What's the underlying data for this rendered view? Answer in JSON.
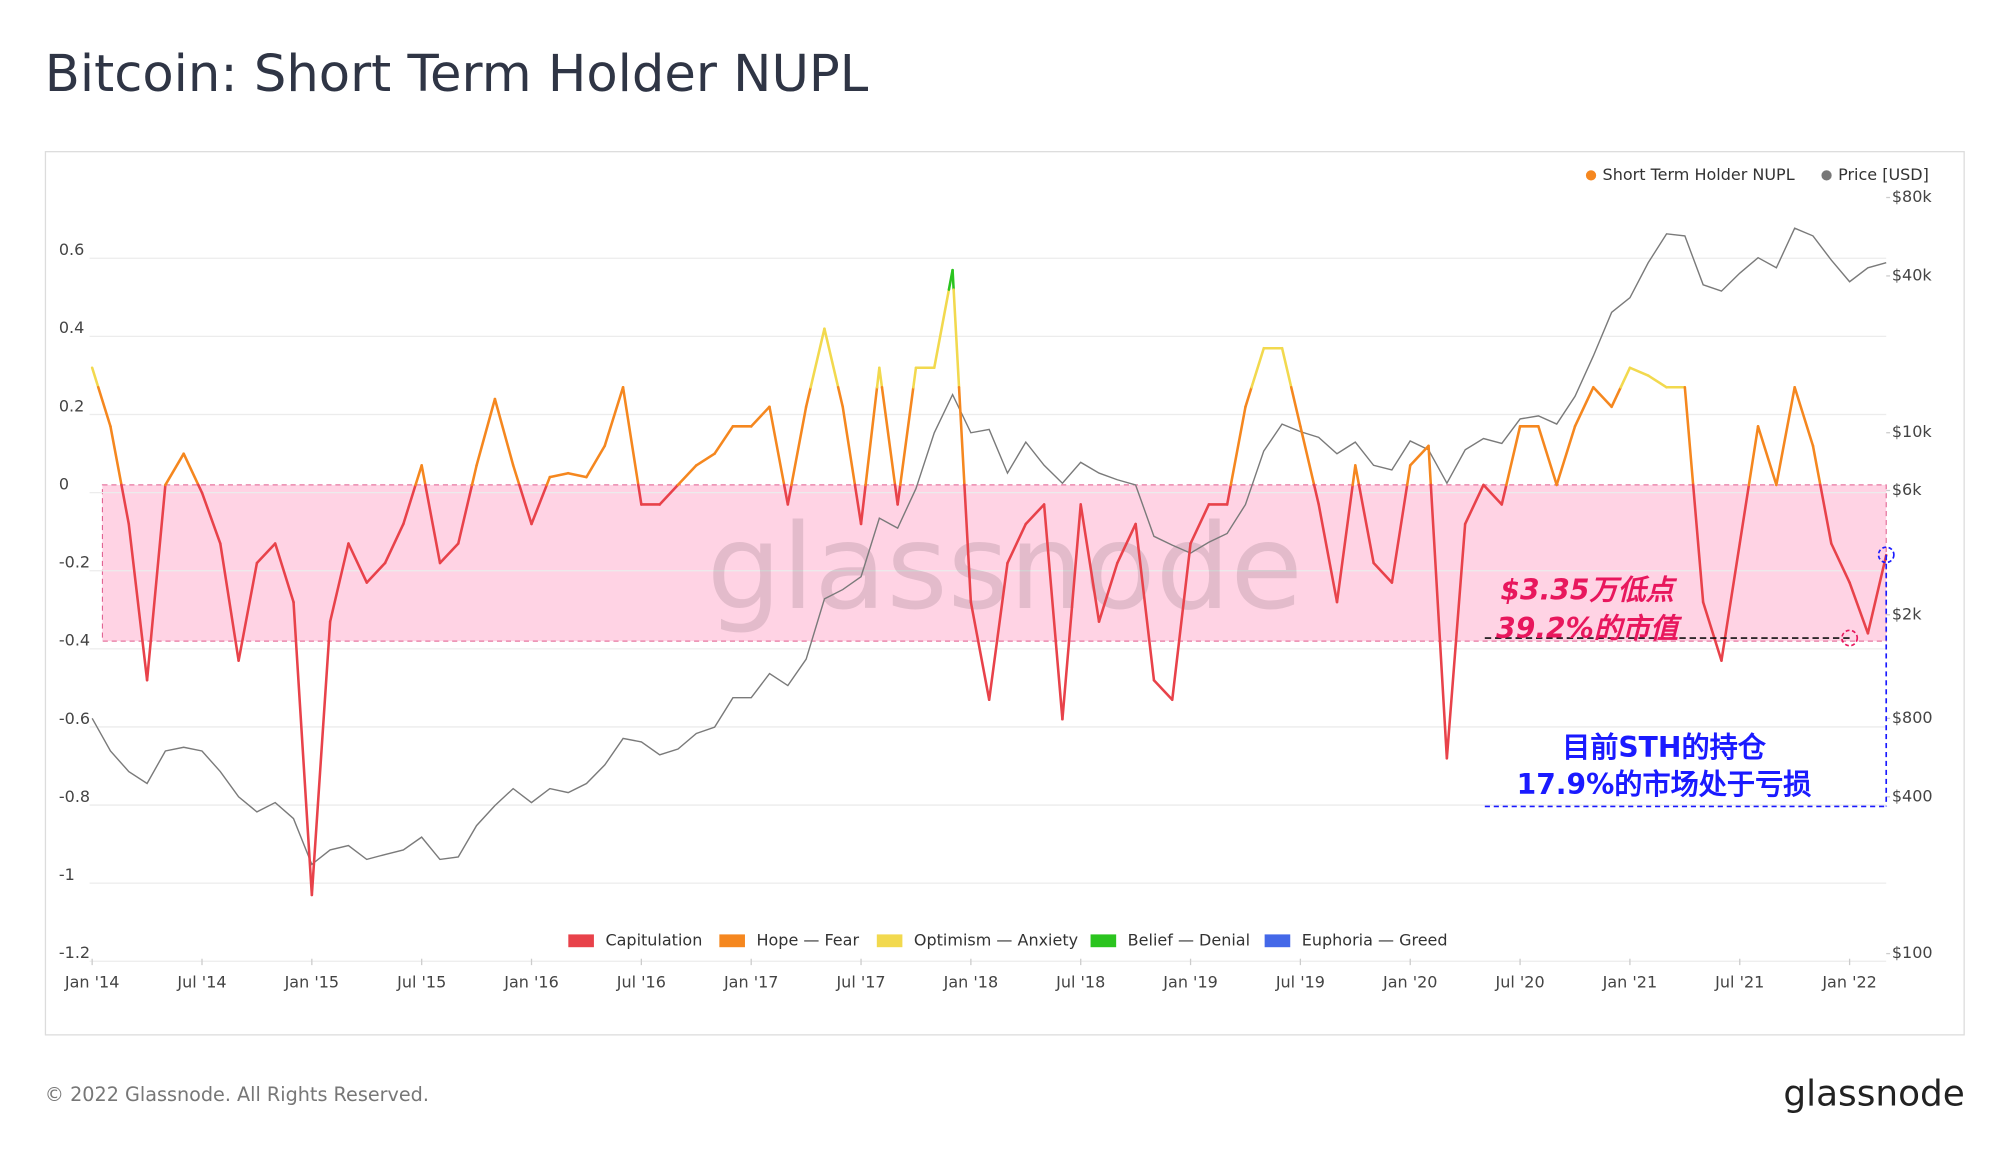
{
  "chart_data": {
    "type": "line",
    "title": "Bitcoin: Short Term Holder NUPL",
    "x": [
      "2014-01",
      "2014-02",
      "2014-03",
      "2014-04",
      "2014-05",
      "2014-06",
      "2014-07",
      "2014-08",
      "2014-09",
      "2014-10",
      "2014-11",
      "2014-12",
      "2015-01",
      "2015-02",
      "2015-03",
      "2015-04",
      "2015-05",
      "2015-06",
      "2015-07",
      "2015-08",
      "2015-09",
      "2015-10",
      "2015-11",
      "2015-12",
      "2016-01",
      "2016-02",
      "2016-03",
      "2016-04",
      "2016-05",
      "2016-06",
      "2016-07",
      "2016-08",
      "2016-09",
      "2016-10",
      "2016-11",
      "2016-12",
      "2017-01",
      "2017-02",
      "2017-03",
      "2017-04",
      "2017-05",
      "2017-06",
      "2017-07",
      "2017-08",
      "2017-09",
      "2017-10",
      "2017-11",
      "2017-12",
      "2018-01",
      "2018-02",
      "2018-03",
      "2018-04",
      "2018-05",
      "2018-06",
      "2018-07",
      "2018-08",
      "2018-09",
      "2018-10",
      "2018-11",
      "2018-12",
      "2019-01",
      "2019-02",
      "2019-03",
      "2019-04",
      "2019-05",
      "2019-06",
      "2019-07",
      "2019-08",
      "2019-09",
      "2019-10",
      "2019-11",
      "2019-12",
      "2020-01",
      "2020-02",
      "2020-03",
      "2020-04",
      "2020-05",
      "2020-06",
      "2020-07",
      "2020-08",
      "2020-09",
      "2020-10",
      "2020-11",
      "2020-12",
      "2021-01",
      "2021-02",
      "2021-03",
      "2021-04",
      "2021-05",
      "2021-06",
      "2021-07",
      "2021-08",
      "2021-09",
      "2021-10",
      "2021-11",
      "2021-12",
      "2022-01",
      "2022-02",
      "2022-03"
    ],
    "series": [
      {
        "name": "Short Term Holder NUPL",
        "color": "#f5871f",
        "values": [
          0.3,
          0.15,
          -0.1,
          -0.5,
          0.0,
          0.08,
          -0.02,
          -0.15,
          -0.45,
          -0.2,
          -0.15,
          -0.3,
          -1.05,
          -0.35,
          -0.15,
          -0.25,
          -0.2,
          -0.1,
          0.05,
          -0.2,
          -0.15,
          0.05,
          0.22,
          0.05,
          -0.1,
          0.02,
          0.03,
          0.02,
          0.1,
          0.25,
          -0.05,
          -0.05,
          0.0,
          0.05,
          0.08,
          0.15,
          0.15,
          0.2,
          -0.05,
          0.2,
          0.4,
          0.2,
          -0.1,
          0.3,
          -0.05,
          0.3,
          0.3,
          0.55,
          -0.3,
          -0.55,
          -0.2,
          -0.1,
          -0.05,
          -0.6,
          -0.05,
          -0.35,
          -0.2,
          -0.1,
          -0.5,
          -0.55,
          -0.15,
          -0.05,
          -0.05,
          0.2,
          0.35,
          0.35,
          0.15,
          -0.05,
          -0.3,
          0.05,
          -0.2,
          -0.25,
          0.05,
          0.1,
          -0.7,
          -0.1,
          0.0,
          -0.05,
          0.15,
          0.15,
          0.0,
          0.15,
          0.25,
          0.2,
          0.3,
          0.28,
          0.25,
          0.25,
          -0.3,
          -0.45,
          -0.15,
          0.15,
          0.0,
          0.25,
          0.1,
          -0.15,
          -0.25,
          -0.38,
          -0.18
        ]
      },
      {
        "name": "Price [USD]",
        "color": "#7a7a7a",
        "axis": "y2",
        "values": [
          800,
          600,
          500,
          450,
          600,
          620,
          600,
          500,
          400,
          350,
          380,
          330,
          220,
          250,
          260,
          230,
          240,
          250,
          280,
          230,
          235,
          310,
          370,
          430,
          380,
          430,
          415,
          450,
          530,
          670,
          650,
          580,
          610,
          700,
          740,
          960,
          960,
          1190,
          1070,
          1350,
          2300,
          2500,
          2800,
          4700,
          4300,
          6100,
          10000,
          14000,
          10000,
          10300,
          7000,
          9200,
          7500,
          6400,
          7700,
          7000,
          6600,
          6300,
          4000,
          3700,
          3450,
          3800,
          4100,
          5300,
          8500,
          10800,
          10100,
          9600,
          8300,
          9200,
          7500,
          7200,
          9300,
          8600,
          6400,
          8600,
          9500,
          9100,
          11300,
          11600,
          10800,
          13800,
          19700,
          29000,
          33000,
          45000,
          58000,
          57000,
          37000,
          35000,
          41000,
          47000,
          43000,
          61000,
          57000,
          46000,
          38000,
          43000,
          45000
        ]
      }
    ],
    "zones": [
      {
        "name": "Capitulation",
        "color": "#e8424a"
      },
      {
        "name": "Hope — Fear",
        "color": "#f5871f",
        "from": 0
      },
      {
        "name": "Optimism — Anxiety",
        "color": "#f2d94e",
        "from": 0.25
      },
      {
        "name": "Belief — Denial",
        "color": "#2bc41f",
        "from": 0.5
      },
      {
        "name": "Euphoria — Greed",
        "color": "#4468e8",
        "from": 0.75
      }
    ],
    "shaded_range": [
      -0.4,
      0
    ],
    "xlim": [
      "2014-01",
      "2022-03"
    ],
    "xticks": [
      {
        "value": "2014-01",
        "label": "Jan '14"
      },
      {
        "value": "2014-07",
        "label": "Jul '14"
      },
      {
        "value": "2015-01",
        "label": "Jan '15"
      },
      {
        "value": "2015-07",
        "label": "Jul '15"
      },
      {
        "value": "2016-01",
        "label": "Jan '16"
      },
      {
        "value": "2016-07",
        "label": "Jul '16"
      },
      {
        "value": "2017-01",
        "label": "Jan '17"
      },
      {
        "value": "2017-07",
        "label": "Jul '17"
      },
      {
        "value": "2018-01",
        "label": "Jan '18"
      },
      {
        "value": "2018-07",
        "label": "Jul '18"
      },
      {
        "value": "2019-01",
        "label": "Jan '19"
      },
      {
        "value": "2019-07",
        "label": "Jul '19"
      },
      {
        "value": "2020-01",
        "label": "Jan '20"
      },
      {
        "value": "2020-07",
        "label": "Jul '20"
      },
      {
        "value": "2021-01",
        "label": "Jan '21"
      },
      {
        "value": "2021-07",
        "label": "Jul '21"
      },
      {
        "value": "2022-01",
        "label": "Jan '22"
      }
    ],
    "ylim": [
      -1.2,
      0.75
    ],
    "yticks": [
      -1.2,
      -1,
      -0.8,
      -0.6,
      -0.4,
      -0.2,
      0,
      0.2,
      0.4,
      0.6
    ],
    "y2lim": [
      100,
      84000
    ],
    "y2log": true,
    "y2ticks": [
      {
        "value": 100,
        "label": "$100"
      },
      {
        "value": 400,
        "label": "$400"
      },
      {
        "value": 800,
        "label": "$800"
      },
      {
        "value": 2000,
        "label": "$2k"
      },
      {
        "value": 6000,
        "label": "$6k"
      },
      {
        "value": 10000,
        "label": "$10k"
      },
      {
        "value": 40000,
        "label": "$40k"
      },
      {
        "value": 80000,
        "label": "$80k"
      }
    ],
    "grid": true,
    "annotations": {
      "low": {
        "lines": [
          "$3.35万低点",
          "39.2%的市值"
        ],
        "value": -0.392,
        "x": "2022-01"
      },
      "current": {
        "lines": [
          "目前STH的持仓",
          "17.9%的市场处于亏损"
        ],
        "value": -0.179,
        "x": "2022-03"
      }
    },
    "watermark": "glassnode"
  },
  "footer": {
    "copyright": "© 2022 Glassnode. All Rights Reserved.",
    "logo": "glassnode"
  }
}
